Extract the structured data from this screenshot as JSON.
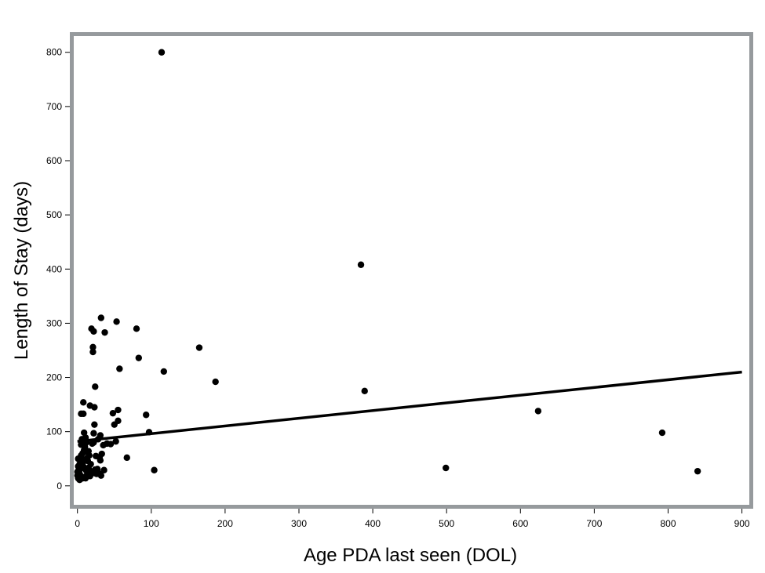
{
  "chart_data": {
    "type": "scatter",
    "title": "",
    "xlabel": "Age PDA last seen (DOL)",
    "ylabel": "Length of Stay (days)",
    "xlim": [
      -5,
      910
    ],
    "ylim": [
      -35,
      830
    ],
    "xticks": [
      0,
      100,
      200,
      300,
      400,
      500,
      600,
      700,
      800,
      900
    ],
    "yticks": [
      0,
      100,
      200,
      300,
      400,
      500,
      600,
      700,
      800
    ],
    "grid": false,
    "legend": "none",
    "colors": {
      "frame": "#969a9d",
      "marker": "#000000",
      "line": "#000000"
    },
    "fit_line": {
      "x": [
        0,
        900
      ],
      "y": [
        82,
        210
      ]
    },
    "points": [
      [
        114,
        800
      ],
      [
        384,
        408
      ],
      [
        389,
        175
      ],
      [
        624,
        138
      ],
      [
        792,
        98
      ],
      [
        840,
        27
      ],
      [
        499,
        33
      ],
      [
        165,
        255
      ],
      [
        187,
        192
      ],
      [
        117,
        211
      ],
      [
        104,
        29
      ],
      [
        97,
        99
      ],
      [
        93,
        131
      ],
      [
        83,
        236
      ],
      [
        80,
        290
      ],
      [
        67,
        52
      ],
      [
        57,
        216
      ],
      [
        55,
        120
      ],
      [
        53,
        303
      ],
      [
        52,
        82
      ],
      [
        55,
        140
      ],
      [
        50,
        113
      ],
      [
        48,
        134
      ],
      [
        45,
        77
      ],
      [
        40,
        78
      ],
      [
        37,
        283
      ],
      [
        35,
        75
      ],
      [
        33,
        59
      ],
      [
        32,
        310
      ],
      [
        31,
        93
      ],
      [
        30,
        52
      ],
      [
        29,
        23
      ],
      [
        31,
        47
      ],
      [
        28,
        86
      ],
      [
        27,
        31
      ],
      [
        25,
        55
      ],
      [
        24,
        183
      ],
      [
        23,
        113
      ],
      [
        22,
        80
      ],
      [
        22,
        97
      ],
      [
        21,
        247
      ],
      [
        21,
        256
      ],
      [
        22,
        285
      ],
      [
        19,
        290
      ],
      [
        23,
        145
      ],
      [
        17,
        148
      ],
      [
        20,
        78
      ],
      [
        18,
        40
      ],
      [
        16,
        56
      ],
      [
        15,
        33
      ],
      [
        14,
        25
      ],
      [
        13,
        20
      ],
      [
        12,
        80
      ],
      [
        11,
        89
      ],
      [
        10,
        72
      ],
      [
        10,
        48
      ],
      [
        9,
        66
      ],
      [
        9,
        98
      ],
      [
        8,
        154
      ],
      [
        8,
        133
      ],
      [
        7,
        60
      ],
      [
        6,
        86
      ],
      [
        5,
        133
      ],
      [
        5,
        76
      ],
      [
        4,
        49
      ],
      [
        4,
        31
      ],
      [
        3,
        22
      ],
      [
        3,
        40
      ],
      [
        2,
        17
      ],
      [
        2,
        28
      ],
      [
        1,
        14
      ],
      [
        1,
        36
      ],
      [
        0,
        19
      ],
      [
        0,
        26
      ],
      [
        6,
        17
      ],
      [
        7,
        14
      ],
      [
        7,
        41
      ],
      [
        11,
        14
      ],
      [
        12,
        28
      ],
      [
        14,
        46
      ],
      [
        17,
        18
      ],
      [
        18,
        27
      ],
      [
        20,
        23
      ],
      [
        24,
        30
      ],
      [
        26,
        22
      ],
      [
        32,
        19
      ],
      [
        36,
        29
      ],
      [
        15,
        64
      ],
      [
        13,
        51
      ],
      [
        9,
        34
      ],
      [
        5,
        56
      ],
      [
        3,
        11
      ],
      [
        11,
        63
      ],
      [
        1,
        50
      ]
    ]
  }
}
